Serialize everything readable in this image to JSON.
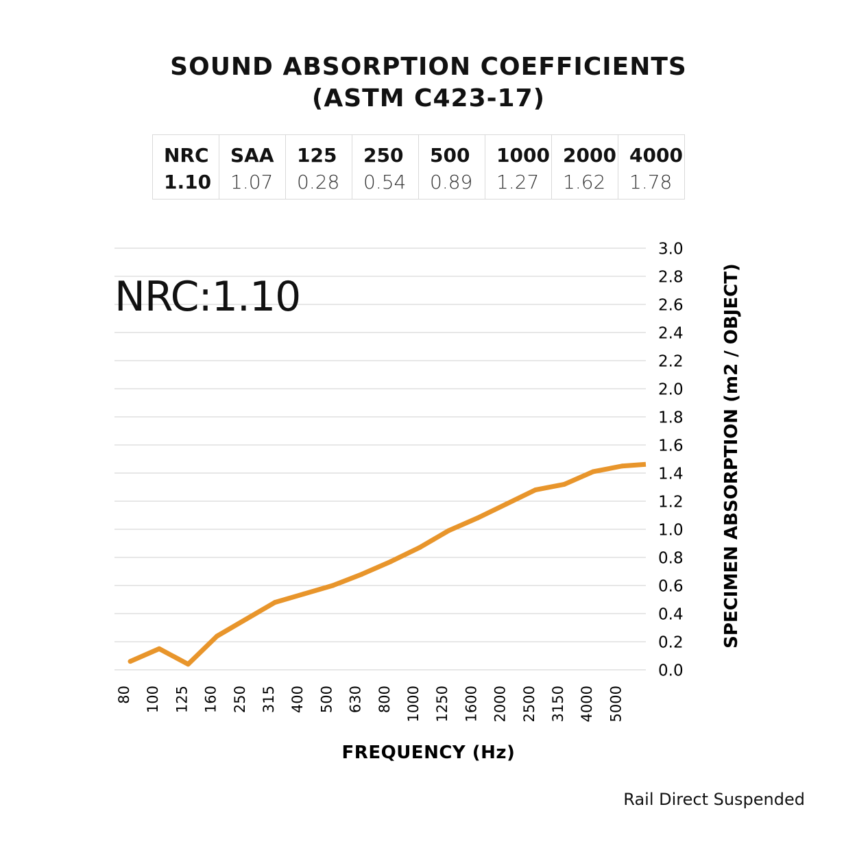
{
  "title": {
    "line1": "SOUND ABSORPTION COEFFICIENTS",
    "line2": "(ASTM C423-17)"
  },
  "coefficient_table": {
    "headers": [
      "NRC",
      "SAA",
      "125",
      "250",
      "500",
      "1000",
      "2000",
      "4000"
    ],
    "values": [
      "1.10",
      "1.07",
      "0.28",
      "0.54",
      "0.89",
      "1.27",
      "1.62",
      "1.78"
    ]
  },
  "annotation": "NRC:1.10",
  "footer": "Rail Direct Suspended",
  "chart_data": {
    "type": "line",
    "xlabel": "FREQUENCY (Hz)",
    "ylabel": "SPECIMEN ABSORPTION (m2 / OBJECT)",
    "categories": [
      "80",
      "100",
      "125",
      "160",
      "250",
      "315",
      "400",
      "500",
      "630",
      "800",
      "1000",
      "1250",
      "1600",
      "2000",
      "2500",
      "3150",
      "4000",
      "5000"
    ],
    "values": [
      0.06,
      0.15,
      0.04,
      0.24,
      0.36,
      0.48,
      0.54,
      0.6,
      0.68,
      0.77,
      0.87,
      0.99,
      1.08,
      1.18,
      1.28,
      1.32,
      1.41,
      1.45
    ],
    "ylim": [
      0,
      3.0
    ],
    "yticks": [
      "0.0",
      "0.2",
      "0.4",
      "0.6",
      "0.8",
      "1.0",
      "1.2",
      "1.4",
      "1.6",
      "1.8",
      "2.0",
      "2.2",
      "2.4",
      "2.6",
      "2.8",
      "3.0"
    ],
    "line_color": "#E8952B",
    "grid": true
  }
}
